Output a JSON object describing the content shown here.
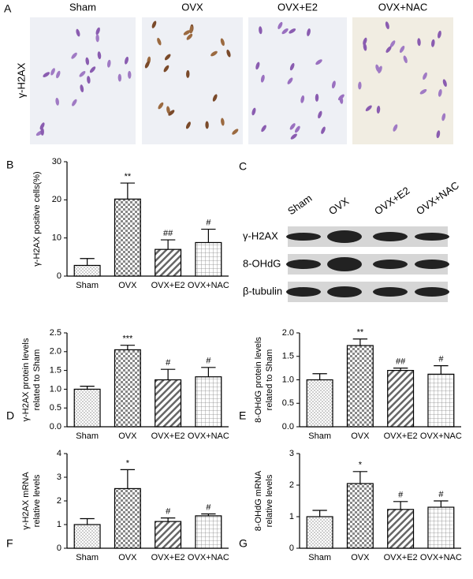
{
  "figure": {
    "panel_a": {
      "label": "A",
      "row_label": "γ-H2AX",
      "columns": [
        "Sham",
        "OVX",
        "OVX+E2",
        "OVX+NAC"
      ]
    },
    "panel_c": {
      "label": "C",
      "columns": [
        "Sham",
        "OVX",
        "OVX+E2",
        "OVX+NAC"
      ],
      "rows": [
        "γ-H2AX",
        "8-OHdG",
        "β-tubulin"
      ]
    }
  },
  "chart_data": [
    {
      "type": "bar",
      "panel": "B",
      "ylabel": [
        "γ-H2AX positive cells(%)"
      ],
      "categories": [
        "Sham",
        "OVX",
        "OVX+E2",
        "OVX+NAC"
      ],
      "values": [
        2.8,
        20.2,
        7.0,
        8.8
      ],
      "errors": [
        1.8,
        4.2,
        2.5,
        3.5
      ],
      "annotations": [
        null,
        "**",
        "##",
        "#"
      ],
      "patterns": [
        "dots",
        "checker",
        "diagonal",
        "grid"
      ],
      "ylim": [
        0,
        30
      ],
      "yticks": [
        0,
        10,
        20,
        30
      ]
    },
    {
      "type": "bar",
      "panel": "D",
      "ylabel": [
        "γ-H2AX protein levels",
        "related to Sham"
      ],
      "categories": [
        "Sham",
        "OVX",
        "OVX+E2",
        "OVX+NAC"
      ],
      "values": [
        1.0,
        2.05,
        1.25,
        1.33
      ],
      "errors": [
        0.08,
        0.12,
        0.28,
        0.25
      ],
      "annotations": [
        null,
        "***",
        "#",
        "#"
      ],
      "patterns": [
        "dots",
        "checker",
        "diagonal",
        "grid"
      ],
      "ylim": [
        0,
        2.5
      ],
      "yticks": [
        {
          "value": 0,
          "label": "0.0"
        },
        0.5,
        {
          "value": 1,
          "label": "1.0"
        },
        1.5,
        {
          "value": 2,
          "label": "2.0"
        },
        2.5
      ]
    },
    {
      "type": "bar",
      "panel": "E",
      "ylabel": [
        "8-OHdG protein levels",
        "related to Sham"
      ],
      "categories": [
        "Sham",
        "OVX",
        "OVX+E2",
        "OVX+NAC"
      ],
      "values": [
        1.0,
        1.73,
        1.2,
        1.12
      ],
      "errors": [
        0.13,
        0.14,
        0.05,
        0.18
      ],
      "annotations": [
        null,
        "**",
        "##",
        "#"
      ],
      "patterns": [
        "dots",
        "checker",
        "diagonal",
        "grid"
      ],
      "ylim": [
        0,
        2
      ],
      "yticks": [
        {
          "value": 0,
          "label": "0.0"
        },
        0.5,
        {
          "value": 1,
          "label": "1.0"
        },
        1.5,
        {
          "value": 2,
          "label": "2.0"
        }
      ]
    },
    {
      "type": "bar",
      "panel": "F",
      "ylabel": [
        "γ-H2AX mRNA",
        "relative levels"
      ],
      "categories": [
        "Sham",
        "OVX",
        "OVX+E2",
        "OVX+NAC"
      ],
      "values": [
        1.0,
        2.52,
        1.13,
        1.37
      ],
      "errors": [
        0.25,
        0.8,
        0.15,
        0.08
      ],
      "annotations": [
        null,
        "*",
        "#",
        "#"
      ],
      "patterns": [
        "dots",
        "checker",
        "diagonal",
        "grid"
      ],
      "ylim": [
        0,
        4
      ],
      "yticks": [
        0,
        1,
        2,
        3,
        4
      ]
    },
    {
      "type": "bar",
      "panel": "G",
      "ylabel": [
        "8-OHdG mRNA",
        "relative levels"
      ],
      "categories": [
        "Sham",
        "OVX",
        "OVX+E2",
        "OVX+NAC"
      ],
      "values": [
        1.0,
        2.05,
        1.23,
        1.3
      ],
      "errors": [
        0.2,
        0.38,
        0.25,
        0.2
      ],
      "annotations": [
        null,
        "*",
        "#",
        "#"
      ],
      "patterns": [
        "dots",
        "checker",
        "diagonal",
        "grid"
      ],
      "ylim": [
        0,
        3
      ],
      "yticks": [
        0,
        1,
        2,
        3
      ]
    }
  ]
}
